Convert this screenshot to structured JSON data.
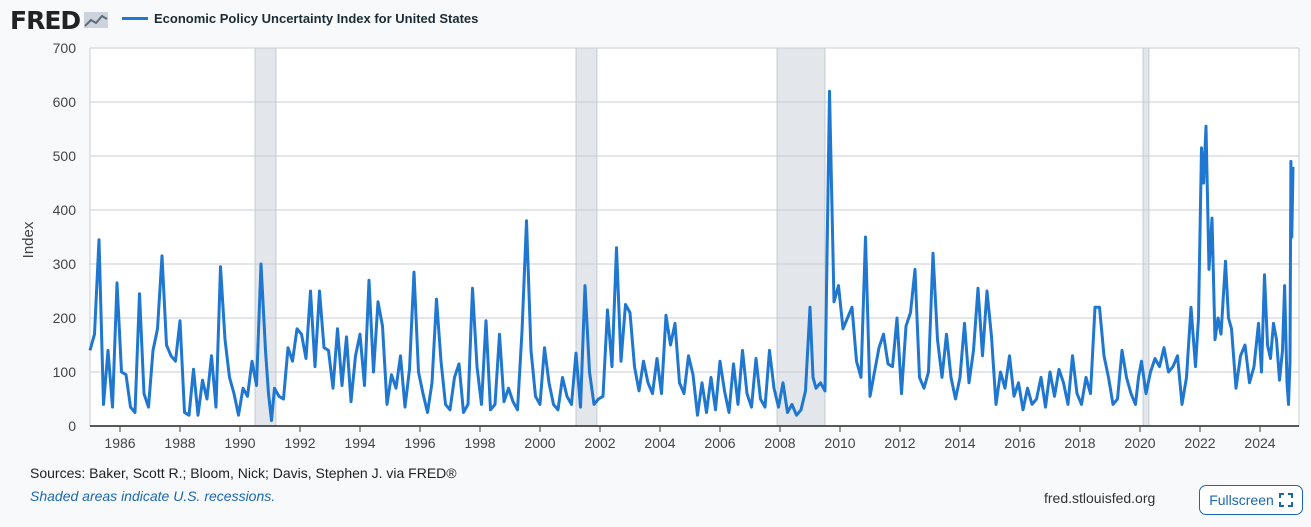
{
  "header": {
    "logo_text": "FRED",
    "series_title": "Economic Policy Uncertainty Index for United States"
  },
  "footer": {
    "sources": "Sources: Baker, Scott R.; Bloom, Nick; Davis, Stephen J. via FRED®",
    "recessions_note": "Shaded areas indicate U.S. recessions.",
    "site": "fred.stlouisfed.org",
    "fullscreen_label": "Fullscreen"
  },
  "colors": {
    "line": "#1f77d0",
    "recession": "#e3e7ec",
    "grid": "#c9ced4",
    "background": "#f7f9fa"
  },
  "chart_data": {
    "type": "line",
    "title": "Economic Policy Uncertainty Index for United States",
    "ylabel": "Index",
    "xlabel": "",
    "ylim": [
      0,
      700
    ],
    "yticks": [
      0,
      100,
      200,
      300,
      400,
      500,
      600,
      700
    ],
    "xlim": [
      1985.0,
      2025.3
    ],
    "xticks": [
      1986,
      1988,
      1990,
      1992,
      1994,
      1996,
      1998,
      2000,
      2002,
      2004,
      2006,
      2008,
      2010,
      2012,
      2014,
      2016,
      2018,
      2020,
      2022,
      2024
    ],
    "grid": true,
    "recessions": [
      [
        1990.5,
        1991.2
      ],
      [
        2001.2,
        2001.9
      ],
      [
        2007.9,
        2009.5
      ],
      [
        2020.1,
        2020.3
      ]
    ],
    "series": [
      {
        "name": "Economic Policy Uncertainty Index for United States",
        "points": [
          [
            1985.0,
            140
          ],
          [
            1985.15,
            170
          ],
          [
            1985.3,
            345
          ],
          [
            1985.45,
            40
          ],
          [
            1985.6,
            140
          ],
          [
            1985.75,
            35
          ],
          [
            1985.9,
            265
          ],
          [
            1986.05,
            100
          ],
          [
            1986.2,
            95
          ],
          [
            1986.35,
            35
          ],
          [
            1986.5,
            25
          ],
          [
            1986.65,
            245
          ],
          [
            1986.8,
            60
          ],
          [
            1986.95,
            35
          ],
          [
            1987.1,
            140
          ],
          [
            1987.25,
            180
          ],
          [
            1987.4,
            315
          ],
          [
            1987.55,
            150
          ],
          [
            1987.7,
            130
          ],
          [
            1987.85,
            120
          ],
          [
            1988.0,
            195
          ],
          [
            1988.15,
            25
          ],
          [
            1988.3,
            20
          ],
          [
            1988.45,
            105
          ],
          [
            1988.6,
            20
          ],
          [
            1988.75,
            85
          ],
          [
            1988.9,
            50
          ],
          [
            1989.05,
            130
          ],
          [
            1989.2,
            35
          ],
          [
            1989.35,
            295
          ],
          [
            1989.5,
            160
          ],
          [
            1989.65,
            90
          ],
          [
            1989.8,
            60
          ],
          [
            1989.95,
            20
          ],
          [
            1990.1,
            70
          ],
          [
            1990.25,
            55
          ],
          [
            1990.4,
            120
          ],
          [
            1990.55,
            75
          ],
          [
            1990.7,
            300
          ],
          [
            1990.85,
            140
          ],
          [
            1990.95,
            60
          ],
          [
            1991.05,
            10
          ],
          [
            1991.15,
            70
          ],
          [
            1991.3,
            55
          ],
          [
            1991.45,
            50
          ],
          [
            1991.6,
            145
          ],
          [
            1991.75,
            120
          ],
          [
            1991.9,
            180
          ],
          [
            1992.05,
            170
          ],
          [
            1992.2,
            125
          ],
          [
            1992.35,
            250
          ],
          [
            1992.5,
            110
          ],
          [
            1992.65,
            250
          ],
          [
            1992.8,
            145
          ],
          [
            1992.95,
            140
          ],
          [
            1993.1,
            70
          ],
          [
            1993.25,
            180
          ],
          [
            1993.4,
            75
          ],
          [
            1993.55,
            165
          ],
          [
            1993.7,
            45
          ],
          [
            1993.85,
            130
          ],
          [
            1994.0,
            170
          ],
          [
            1994.15,
            75
          ],
          [
            1994.3,
            270
          ],
          [
            1994.45,
            100
          ],
          [
            1994.6,
            230
          ],
          [
            1994.75,
            185
          ],
          [
            1994.9,
            40
          ],
          [
            1995.05,
            95
          ],
          [
            1995.2,
            70
          ],
          [
            1995.35,
            130
          ],
          [
            1995.5,
            35
          ],
          [
            1995.65,
            105
          ],
          [
            1995.8,
            285
          ],
          [
            1995.95,
            100
          ],
          [
            1996.1,
            60
          ],
          [
            1996.25,
            25
          ],
          [
            1996.4,
            80
          ],
          [
            1996.55,
            235
          ],
          [
            1996.7,
            120
          ],
          [
            1996.85,
            40
          ],
          [
            1997.0,
            30
          ],
          [
            1997.15,
            90
          ],
          [
            1997.3,
            115
          ],
          [
            1997.45,
            25
          ],
          [
            1997.6,
            40
          ],
          [
            1997.75,
            255
          ],
          [
            1997.9,
            110
          ],
          [
            1998.05,
            40
          ],
          [
            1998.2,
            195
          ],
          [
            1998.35,
            30
          ],
          [
            1998.5,
            40
          ],
          [
            1998.65,
            170
          ],
          [
            1998.8,
            45
          ],
          [
            1998.95,
            70
          ],
          [
            1999.1,
            45
          ],
          [
            1999.25,
            30
          ],
          [
            1999.4,
            175
          ],
          [
            1999.55,
            380
          ],
          [
            1999.7,
            140
          ],
          [
            1999.85,
            55
          ],
          [
            2000.0,
            40
          ],
          [
            2000.15,
            145
          ],
          [
            2000.3,
            80
          ],
          [
            2000.45,
            40
          ],
          [
            2000.6,
            30
          ],
          [
            2000.75,
            90
          ],
          [
            2000.9,
            55
          ],
          [
            2001.05,
            40
          ],
          [
            2001.2,
            135
          ],
          [
            2001.35,
            35
          ],
          [
            2001.5,
            260
          ],
          [
            2001.65,
            100
          ],
          [
            2001.8,
            40
          ],
          [
            2001.95,
            50
          ],
          [
            2002.1,
            55
          ],
          [
            2002.25,
            215
          ],
          [
            2002.4,
            110
          ],
          [
            2002.55,
            330
          ],
          [
            2002.7,
            120
          ],
          [
            2002.85,
            225
          ],
          [
            2003.0,
            210
          ],
          [
            2003.15,
            110
          ],
          [
            2003.3,
            65
          ],
          [
            2003.45,
            120
          ],
          [
            2003.6,
            80
          ],
          [
            2003.75,
            60
          ],
          [
            2003.9,
            125
          ],
          [
            2004.05,
            60
          ],
          [
            2004.2,
            205
          ],
          [
            2004.35,
            150
          ],
          [
            2004.5,
            190
          ],
          [
            2004.65,
            80
          ],
          [
            2004.8,
            60
          ],
          [
            2004.95,
            130
          ],
          [
            2005.1,
            95
          ],
          [
            2005.25,
            20
          ],
          [
            2005.4,
            80
          ],
          [
            2005.55,
            25
          ],
          [
            2005.7,
            90
          ],
          [
            2005.85,
            30
          ],
          [
            2006.0,
            120
          ],
          [
            2006.15,
            65
          ],
          [
            2006.3,
            25
          ],
          [
            2006.45,
            115
          ],
          [
            2006.6,
            40
          ],
          [
            2006.75,
            140
          ],
          [
            2006.9,
            60
          ],
          [
            2007.05,
            35
          ],
          [
            2007.2,
            125
          ],
          [
            2007.35,
            50
          ],
          [
            2007.5,
            35
          ],
          [
            2007.65,
            140
          ],
          [
            2007.8,
            70
          ],
          [
            2007.95,
            35
          ],
          [
            2008.1,
            80
          ],
          [
            2008.25,
            25
          ],
          [
            2008.4,
            40
          ],
          [
            2008.55,
            20
          ],
          [
            2008.7,
            30
          ],
          [
            2008.85,
            65
          ],
          [
            2009.0,
            220
          ],
          [
            2009.1,
            90
          ],
          [
            2009.2,
            70
          ],
          [
            2009.35,
            80
          ],
          [
            2009.5,
            65
          ],
          [
            2009.65,
            620
          ],
          [
            2009.8,
            230
          ],
          [
            2009.95,
            260
          ],
          [
            2010.1,
            180
          ],
          [
            2010.25,
            200
          ],
          [
            2010.4,
            220
          ],
          [
            2010.55,
            120
          ],
          [
            2010.7,
            90
          ],
          [
            2010.85,
            350
          ],
          [
            2011.0,
            55
          ],
          [
            2011.15,
            100
          ],
          [
            2011.3,
            145
          ],
          [
            2011.45,
            170
          ],
          [
            2011.6,
            115
          ],
          [
            2011.75,
            110
          ],
          [
            2011.9,
            200
          ],
          [
            2012.05,
            60
          ],
          [
            2012.2,
            185
          ],
          [
            2012.35,
            210
          ],
          [
            2012.5,
            290
          ],
          [
            2012.65,
            90
          ],
          [
            2012.8,
            70
          ],
          [
            2012.95,
            100
          ],
          [
            2013.1,
            320
          ],
          [
            2013.25,
            160
          ],
          [
            2013.4,
            90
          ],
          [
            2013.55,
            170
          ],
          [
            2013.7,
            90
          ],
          [
            2013.85,
            50
          ],
          [
            2014.0,
            90
          ],
          [
            2014.15,
            190
          ],
          [
            2014.3,
            80
          ],
          [
            2014.45,
            140
          ],
          [
            2014.6,
            255
          ],
          [
            2014.75,
            130
          ],
          [
            2014.9,
            250
          ],
          [
            2015.05,
            165
          ],
          [
            2015.2,
            40
          ],
          [
            2015.35,
            100
          ],
          [
            2015.5,
            70
          ],
          [
            2015.65,
            130
          ],
          [
            2015.8,
            55
          ],
          [
            2015.95,
            80
          ],
          [
            2016.1,
            30
          ],
          [
            2016.25,
            70
          ],
          [
            2016.4,
            40
          ],
          [
            2016.55,
            50
          ],
          [
            2016.7,
            90
          ],
          [
            2016.85,
            35
          ],
          [
            2017.0,
            100
          ],
          [
            2017.15,
            55
          ],
          [
            2017.3,
            105
          ],
          [
            2017.45,
            80
          ],
          [
            2017.6,
            40
          ],
          [
            2017.75,
            130
          ],
          [
            2017.9,
            60
          ],
          [
            2018.05,
            40
          ],
          [
            2018.2,
            90
          ],
          [
            2018.35,
            60
          ],
          [
            2018.5,
            220
          ],
          [
            2018.65,
            220
          ],
          [
            2018.8,
            130
          ],
          [
            2018.95,
            90
          ],
          [
            2019.1,
            40
          ],
          [
            2019.25,
            50
          ],
          [
            2019.4,
            140
          ],
          [
            2019.55,
            90
          ],
          [
            2019.7,
            60
          ],
          [
            2019.85,
            40
          ],
          [
            2019.95,
            90
          ],
          [
            2020.05,
            120
          ],
          [
            2020.2,
            60
          ],
          [
            2020.35,
            100
          ],
          [
            2020.5,
            125
          ],
          [
            2020.65,
            110
          ],
          [
            2020.8,
            145
          ],
          [
            2020.95,
            100
          ],
          [
            2021.1,
            110
          ],
          [
            2021.25,
            130
          ],
          [
            2021.4,
            40
          ],
          [
            2021.55,
            90
          ],
          [
            2021.7,
            220
          ],
          [
            2021.85,
            110
          ],
          [
            2021.95,
            200
          ],
          [
            2022.05,
            515
          ],
          [
            2022.12,
            450
          ],
          [
            2022.2,
            555
          ],
          [
            2022.3,
            290
          ],
          [
            2022.4,
            385
          ],
          [
            2022.5,
            160
          ],
          [
            2022.6,
            200
          ],
          [
            2022.7,
            170
          ],
          [
            2022.85,
            305
          ],
          [
            2022.95,
            200
          ],
          [
            2023.05,
            180
          ],
          [
            2023.2,
            70
          ],
          [
            2023.35,
            130
          ],
          [
            2023.5,
            150
          ],
          [
            2023.65,
            80
          ],
          [
            2023.8,
            110
          ],
          [
            2023.95,
            190
          ],
          [
            2024.05,
            100
          ],
          [
            2024.15,
            280
          ],
          [
            2024.25,
            150
          ],
          [
            2024.35,
            125
          ],
          [
            2024.45,
            190
          ],
          [
            2024.55,
            160
          ],
          [
            2024.65,
            85
          ],
          [
            2024.75,
            140
          ],
          [
            2024.82,
            260
          ],
          [
            2024.9,
            80
          ],
          [
            2024.95,
            40
          ],
          [
            2025.0,
            120
          ],
          [
            2025.03,
            490
          ],
          [
            2025.06,
            350
          ],
          [
            2025.1,
            480
          ]
        ]
      }
    ]
  }
}
